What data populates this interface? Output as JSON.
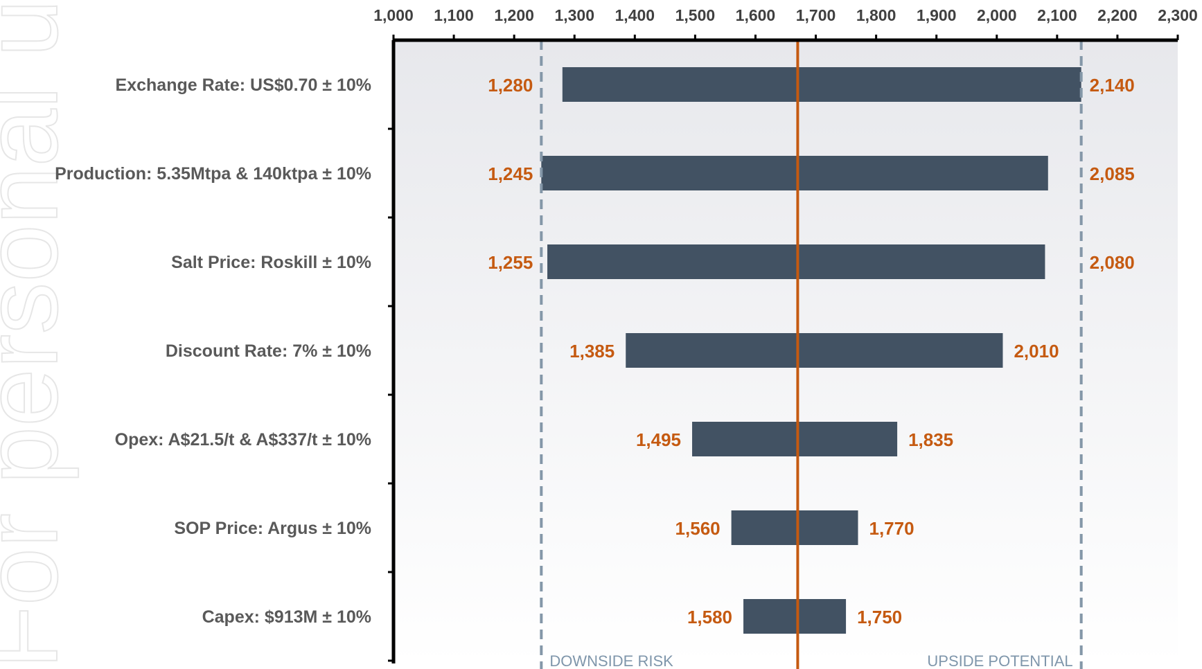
{
  "watermark_text": "For personal use only",
  "chart_data": {
    "type": "tornado",
    "title": "",
    "xlabel": "",
    "ylabel": "",
    "xlim": [
      1000,
      2300
    ],
    "x_ticks": [
      1000,
      1100,
      1200,
      1300,
      1400,
      1500,
      1600,
      1700,
      1800,
      1900,
      2000,
      2100,
      2200,
      2300
    ],
    "x_tick_labels": [
      "1,000",
      "1,100",
      "1,200",
      "1,300",
      "1,400",
      "1,500",
      "1,600",
      "1,700",
      "1,800",
      "1,900",
      "2,000",
      "2,100",
      "2,200",
      "2,300"
    ],
    "axis_position": "top",
    "base_value": 1670,
    "downside_limit": 1245,
    "upside_limit": 2140,
    "categories": [
      "Exchange Rate: US$0.70 ± 10%",
      "Production: 5.35Mtpa & 140ktpa ± 10%",
      "Salt Price: Roskill ± 10%",
      "Discount Rate: 7% ± 10%",
      "Opex: A$21.5/t & A$337/t ± 10%",
      "SOP Price: Argus ± 10%",
      "Capex: $913M ± 10%"
    ],
    "low_values": [
      1280,
      1245,
      1255,
      1385,
      1495,
      1560,
      1580
    ],
    "high_values": [
      2140,
      2085,
      2080,
      2010,
      1835,
      1770,
      1750
    ],
    "low_labels": [
      "1,280",
      "1,245",
      "1,255",
      "1,385",
      "1,495",
      "1,560",
      "1,580"
    ],
    "high_labels": [
      "2,140",
      "2,085",
      "2,080",
      "2,010",
      "1,835",
      "1,770",
      "1,750"
    ],
    "annotations": {
      "downside": "DOWNSIDE RISK",
      "upside": "UPSIDE POTENTIAL"
    },
    "colors": {
      "bar": "#425263",
      "base_line": "#C55A11",
      "limit_lines": "#8497A8",
      "value_labels": "#C55A11",
      "axis": "#000000",
      "plot_bg_top": "#E7E8EC",
      "plot_bg_bottom": "#FFFFFF"
    },
    "grid": false
  }
}
